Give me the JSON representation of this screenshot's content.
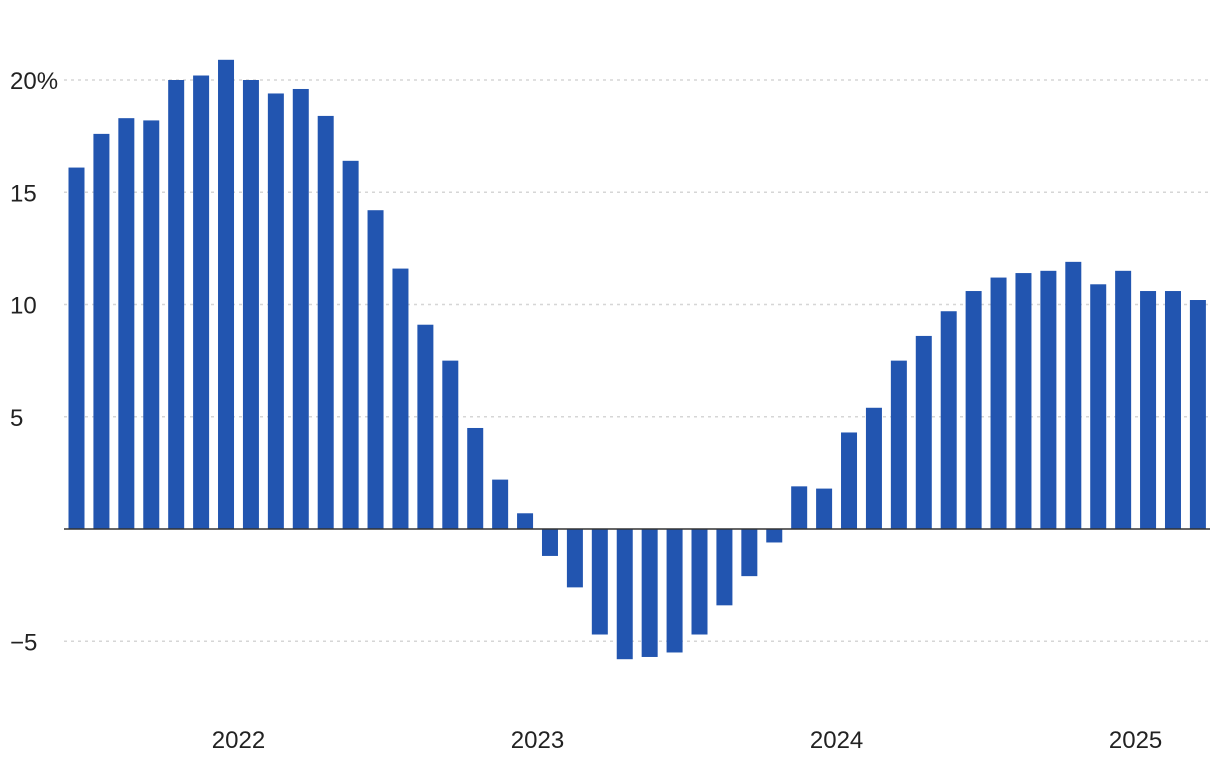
{
  "chart_data": {
    "type": "bar",
    "title": "",
    "xlabel": "",
    "ylabel": "",
    "ylim": [
      -6.5,
      21.5
    ],
    "grid": true,
    "y_ticks": [
      {
        "value": 20,
        "label": "20%"
      },
      {
        "value": 15,
        "label": "15"
      },
      {
        "value": 10,
        "label": "10"
      },
      {
        "value": 5,
        "label": "5"
      },
      {
        "value": -5,
        "label": "−5"
      }
    ],
    "x_ticks": [
      {
        "index": 6.5,
        "label": "2022"
      },
      {
        "index": 18.5,
        "label": "2023"
      },
      {
        "index": 30.5,
        "label": "2024"
      },
      {
        "index": 42.5,
        "label": "2025"
      }
    ],
    "series": [
      {
        "color": "#2255b0",
        "values": [
          16.1,
          17.6,
          18.3,
          18.2,
          20.0,
          20.2,
          20.9,
          20.0,
          19.4,
          19.6,
          18.4,
          16.4,
          14.2,
          11.6,
          9.1,
          7.5,
          4.5,
          2.2,
          0.7,
          -1.2,
          -2.6,
          -4.7,
          -5.8,
          -5.7,
          -5.5,
          -4.7,
          -3.4,
          -2.1,
          -0.6,
          1.9,
          1.8,
          4.3,
          5.4,
          7.5,
          8.6,
          9.7,
          10.6,
          11.2,
          11.4,
          11.5,
          11.9,
          10.9,
          11.5,
          10.6,
          10.6,
          10.2
        ]
      }
    ]
  }
}
